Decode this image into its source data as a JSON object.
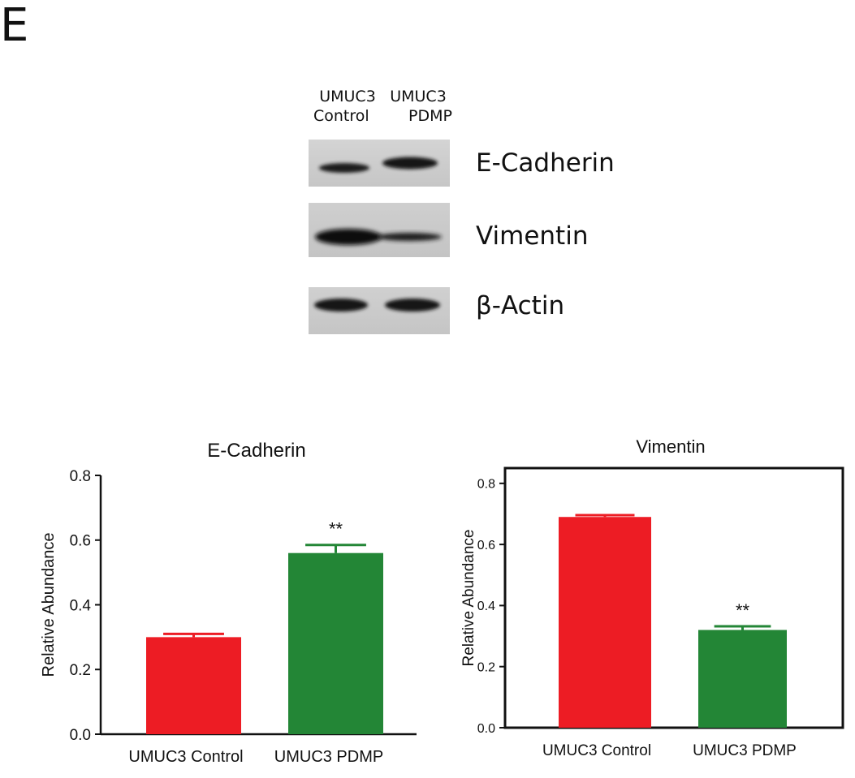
{
  "panel_letter": "E",
  "western_blot": {
    "lanes": [
      {
        "line1": "UMUC3",
        "line2": "Control"
      },
      {
        "line1": "UMUC3",
        "line2": "PDMP"
      }
    ],
    "proteins": [
      "E-Cadherin",
      "Vimentin",
      "β-Actin"
    ]
  },
  "chart_data": [
    {
      "type": "bar",
      "title": "E-Cadherin",
      "xlabel": "",
      "ylabel": "Relative Abundance",
      "categories": [
        "UMUC3 Control",
        "UMUC3 PDMP"
      ],
      "values": [
        0.3,
        0.56
      ],
      "errors": [
        0.01,
        0.025
      ],
      "annotations": [
        "",
        "**"
      ],
      "colors": [
        "#ed1c24",
        "#238636"
      ],
      "ylim": [
        0,
        0.8
      ],
      "yticks": [
        "0.0",
        "0.2",
        "0.4",
        "0.6",
        "0.8"
      ],
      "grid": false,
      "frame": "left-bottom"
    },
    {
      "type": "bar",
      "title": "Vimentin",
      "xlabel": "",
      "ylabel": "Relative Abundance",
      "categories": [
        "UMUC3 Control",
        "UMUC3 PDMP"
      ],
      "values": [
        0.69,
        0.32
      ],
      "errors": [
        0.006,
        0.012
      ],
      "annotations": [
        "",
        "**"
      ],
      "colors": [
        "#ed1c24",
        "#238636"
      ],
      "ylim": [
        0,
        0.85
      ],
      "yticks": [
        "0.0",
        "0.2",
        "0.4",
        "0.6",
        "0.8"
      ],
      "grid": false,
      "frame": "box"
    }
  ]
}
